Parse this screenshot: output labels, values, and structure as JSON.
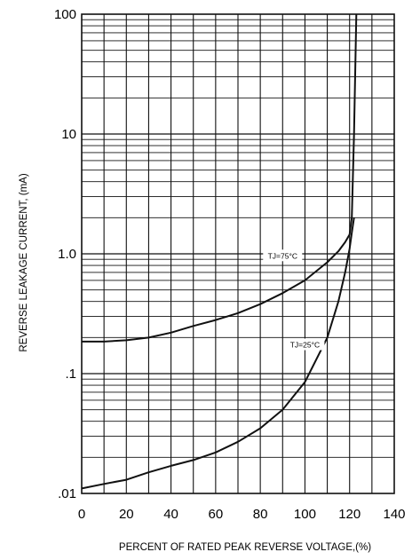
{
  "chart_data": {
    "type": "line",
    "xlabel": "PERCENT OF RATED PEAK REVERSE VOLTAGE,(%)",
    "ylabel": "REVERSE LEAKAGE CURRENT, (mA)",
    "xlim": [
      0,
      140
    ],
    "ylim": [
      0.01,
      100
    ],
    "yscale": "log",
    "grid": true,
    "x_ticks": [
      "0",
      "20",
      "40",
      "60",
      "80",
      "100",
      "120",
      "140"
    ],
    "y_ticks": [
      ".01",
      ".1",
      "1.0",
      "10",
      "100"
    ],
    "series": [
      {
        "name": "TJ=75°C",
        "x": [
          0,
          10,
          20,
          30,
          40,
          50,
          60,
          70,
          80,
          90,
          100,
          110,
          115,
          118,
          120,
          121,
          122,
          123
        ],
        "y": [
          0.185,
          0.185,
          0.19,
          0.2,
          0.22,
          0.25,
          0.28,
          0.32,
          0.38,
          0.47,
          0.6,
          0.85,
          1.05,
          1.25,
          1.45,
          2.0,
          10,
          100
        ]
      },
      {
        "name": "TJ=25°C",
        "x": [
          0,
          10,
          20,
          30,
          40,
          50,
          60,
          70,
          80,
          90,
          100,
          110,
          115,
          118,
          120,
          121,
          122
        ],
        "y": [
          0.011,
          0.012,
          0.013,
          0.015,
          0.017,
          0.019,
          0.022,
          0.027,
          0.035,
          0.05,
          0.085,
          0.2,
          0.4,
          0.7,
          1.1,
          1.5,
          2.0
        ]
      }
    ],
    "annotations": [
      {
        "text": "TJ=75°C",
        "series": 0,
        "x": 90
      },
      {
        "text": "TJ=25°C",
        "series": 1,
        "x": 100
      }
    ]
  }
}
